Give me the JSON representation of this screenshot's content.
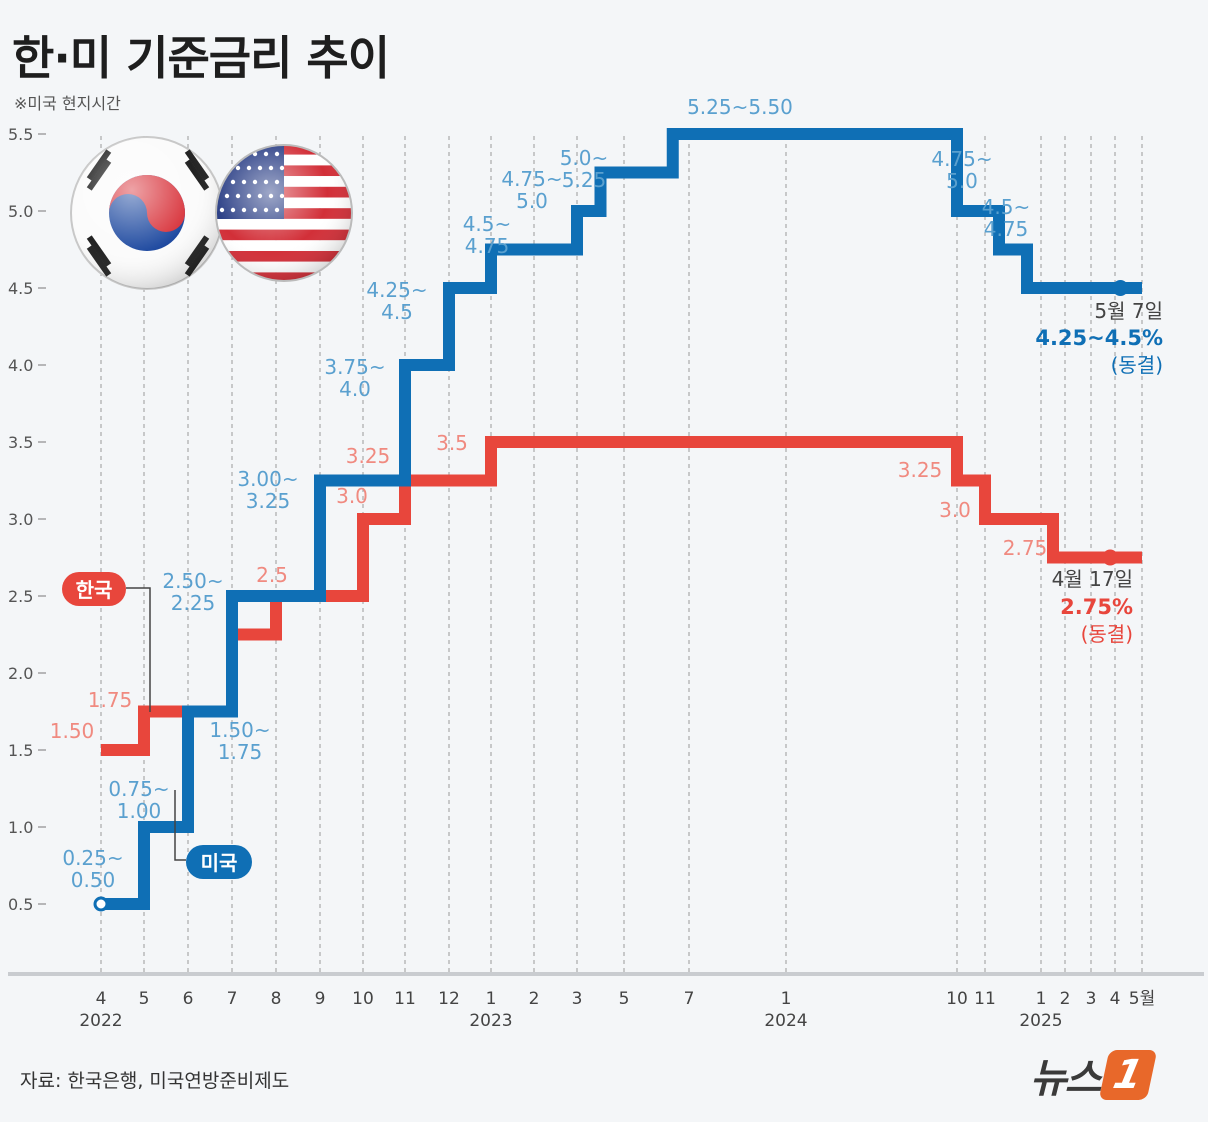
{
  "title": "한·미 기준금리 추이",
  "subtitle": "※미국 현지시간",
  "source": "자료: 한국은행, 미국연방준비제도",
  "logo": {
    "text": "뉴스",
    "badge": "1"
  },
  "colors": {
    "korea": "#e8463c",
    "usa": "#0f6fb5",
    "korea_label": "#f08a80",
    "usa_label": "#5aa0cf",
    "grid": "#9a9a9a"
  },
  "chart_data": {
    "type": "line",
    "step": true,
    "ylim": [
      0.25,
      5.75
    ],
    "yticks": [
      "0.5",
      "1.0",
      "1.5",
      "2.0",
      "2.5",
      "3.0",
      "3.5",
      "4.0",
      "4.5",
      "5.0",
      "5.5"
    ],
    "ytick_values": [
      0.5,
      1.0,
      1.5,
      2.0,
      2.5,
      3.0,
      3.5,
      4.0,
      4.5,
      5.0,
      5.5
    ],
    "x_months": [
      {
        "label": "4",
        "month": 0
      },
      {
        "label": "5",
        "month": 1
      },
      {
        "label": "6",
        "month": 2
      },
      {
        "label": "7",
        "month": 3
      },
      {
        "label": "8",
        "month": 4
      },
      {
        "label": "9",
        "month": 5
      },
      {
        "label": "10",
        "month": 6
      },
      {
        "label": "11",
        "month": 7
      },
      {
        "label": "12",
        "month": 8
      },
      {
        "label": "1",
        "month": 9
      },
      {
        "label": "2",
        "month": 10
      },
      {
        "label": "3",
        "month": 11
      },
      {
        "label": "5",
        "month": 13
      },
      {
        "label": "7",
        "month": 15
      },
      {
        "label": "1",
        "month": 21
      },
      {
        "label": "10",
        "month": 30
      },
      {
        "label": "11",
        "month": 31
      },
      {
        "label": "1",
        "month": 33
      },
      {
        "label": "2",
        "month": 34
      },
      {
        "label": "3",
        "month": 35
      },
      {
        "label": "4",
        "month": 36
      },
      {
        "label": "5월",
        "month": 37
      }
    ],
    "years": [
      {
        "label": "2022",
        "month": 0
      },
      {
        "label": "2023",
        "month": 9
      },
      {
        "label": "2024",
        "month": 21
      },
      {
        "label": "2025",
        "month": 33
      }
    ],
    "series": [
      {
        "name": "한국",
        "steps": [
          [
            0,
            1.5
          ],
          [
            1,
            1.75
          ],
          [
            3,
            2.25
          ],
          [
            4,
            2.5
          ],
          [
            6,
            3.0
          ],
          [
            7,
            3.25
          ],
          [
            9,
            3.5
          ],
          [
            30,
            3.25
          ],
          [
            31,
            3.0
          ],
          [
            33.5,
            2.75
          ],
          [
            37,
            2.75
          ]
        ],
        "labels": [
          "1.50",
          "1.75",
          "2.5",
          "3.0",
          "3.25",
          "3.5",
          "3.25",
          "3.0",
          "2.75"
        ],
        "end": {
          "date": "4월 17일",
          "value": "2.75%",
          "note": "(동결)"
        }
      },
      {
        "name": "미국",
        "steps": [
          [
            0,
            0.5
          ],
          [
            1,
            1.0
          ],
          [
            2,
            1.75
          ],
          [
            3,
            2.5
          ],
          [
            5,
            3.25
          ],
          [
            7,
            4.0
          ],
          [
            8,
            4.5
          ],
          [
            9,
            4.75
          ],
          [
            11,
            5.0
          ],
          [
            12,
            5.25
          ],
          [
            14.5,
            5.5
          ],
          [
            30,
            5.0
          ],
          [
            31.5,
            4.75
          ],
          [
            32.5,
            4.5
          ],
          [
            37,
            4.5
          ]
        ],
        "labels": [
          "0.25~\n0.50",
          "0.75~\n1.00",
          "1.50~\n1.75",
          "2.50~\n2.25",
          "3.00~\n3.25",
          "3.75~\n4.0",
          "4.25~\n4.5",
          "4.5~\n4.75",
          "4.75~\n5.0",
          "5.0~\n5.25",
          "5.25~5.50",
          "4.75~\n5.0",
          "4.5~\n4.75"
        ],
        "end": {
          "date": "5월 7일",
          "value": "4.25~4.5%",
          "note": "(동결)"
        }
      }
    ]
  }
}
